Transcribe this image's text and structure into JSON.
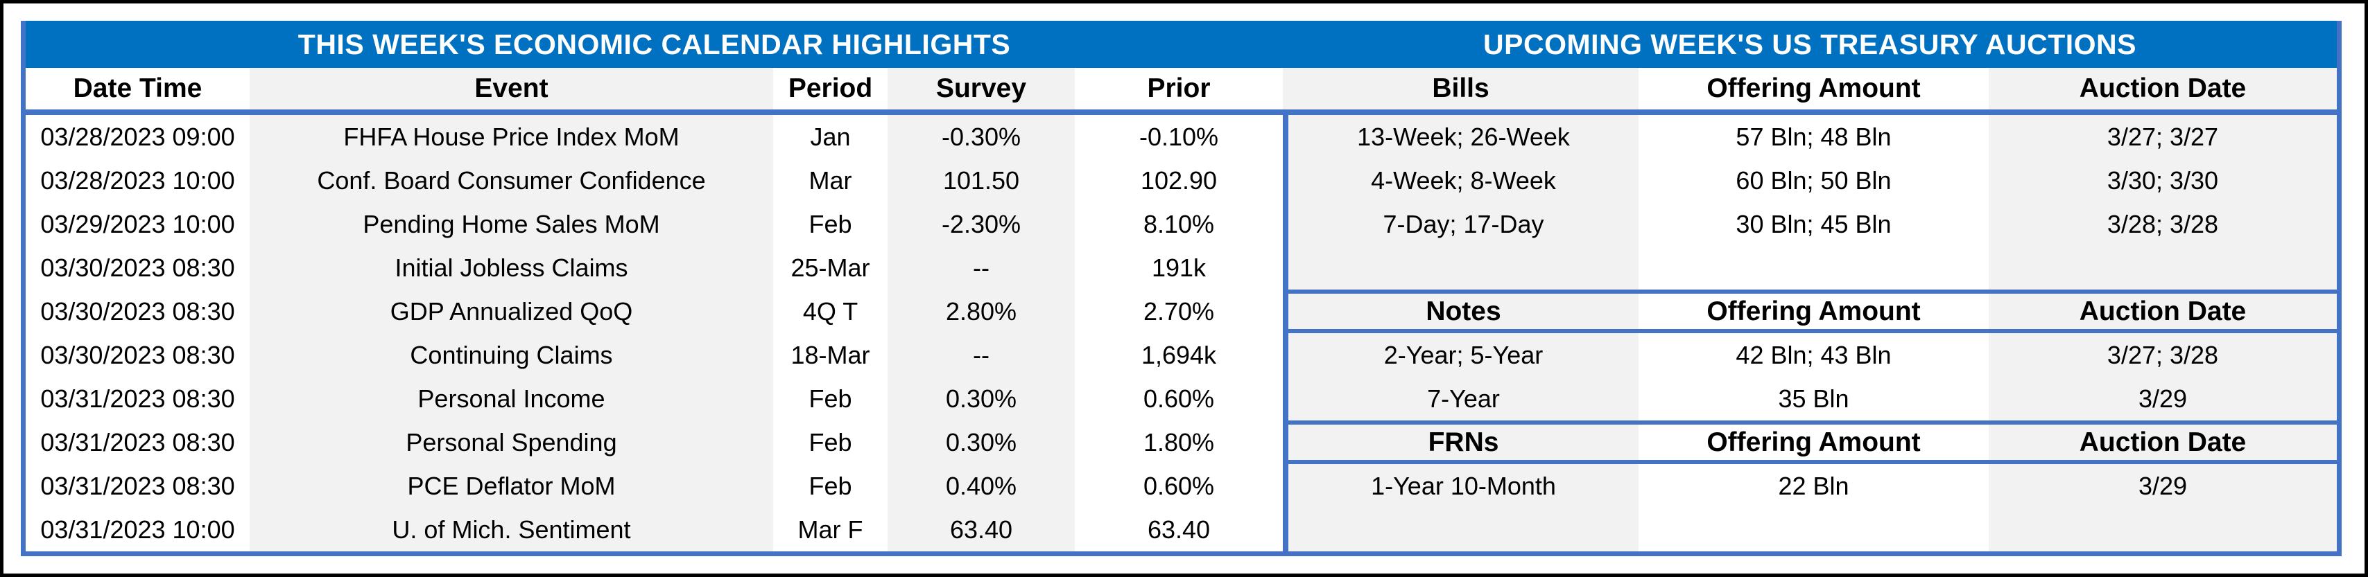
{
  "left_table": {
    "title": "THIS WEEK'S ECONOMIC CALENDAR HIGHLIGHTS",
    "columns": [
      "Date Time",
      "Event",
      "Period",
      "Survey",
      "Prior"
    ],
    "rows": [
      [
        "03/28/2023 09:00",
        "FHFA House Price Index MoM",
        "Jan",
        "-0.30%",
        "-0.10%"
      ],
      [
        "03/28/2023 10:00",
        "Conf. Board Consumer Confidence",
        "Mar",
        "101.50",
        "102.90"
      ],
      [
        "03/29/2023 10:00",
        "Pending Home Sales MoM",
        "Feb",
        "-2.30%",
        "8.10%"
      ],
      [
        "03/30/2023 08:30",
        "Initial Jobless Claims",
        "25-Mar",
        "--",
        "191k"
      ],
      [
        "03/30/2023 08:30",
        "GDP Annualized QoQ",
        "4Q T",
        "2.80%",
        "2.70%"
      ],
      [
        "03/30/2023 08:30",
        "Continuing Claims",
        "18-Mar",
        "--",
        "1,694k"
      ],
      [
        "03/31/2023 08:30",
        "Personal Income",
        "Feb",
        "0.30%",
        "0.60%"
      ],
      [
        "03/31/2023 08:30",
        "Personal Spending",
        "Feb",
        "0.30%",
        "1.80%"
      ],
      [
        "03/31/2023 08:30",
        "PCE Deflator MoM",
        "Feb",
        "0.40%",
        "0.60%"
      ],
      [
        "03/31/2023 10:00",
        "U. of Mich. Sentiment",
        "Mar F",
        "63.40",
        "63.40"
      ]
    ]
  },
  "right_table": {
    "title": "UPCOMING WEEK'S US TREASURY AUCTIONS",
    "sections": [
      {
        "key": "bills",
        "header": [
          "Bills",
          "Offering Amount",
          "Auction Date"
        ],
        "rows": [
          [
            "13-Week; 26-Week",
            "57 Bln; 48 Bln",
            "3/27; 3/27"
          ],
          [
            "4-Week; 8-Week",
            "60 Bln; 50 Bln",
            "3/30; 3/30"
          ],
          [
            "7-Day; 17-Day",
            "30 Bln; 45 Bln",
            "3/28; 3/28"
          ],
          [
            "",
            "",
            ""
          ]
        ]
      },
      {
        "key": "notes",
        "header": [
          "Notes",
          "Offering Amount",
          "Auction Date"
        ],
        "rows": [
          [
            "2-Year; 5-Year",
            "42 Bln; 43 Bln",
            "3/27; 3/28"
          ],
          [
            "7-Year",
            "35 Bln",
            "3/29"
          ]
        ]
      },
      {
        "key": "frns",
        "header": [
          "FRNs",
          "Offering Amount",
          "Auction Date"
        ],
        "rows": [
          [
            "1-Year 10-Month",
            "22 Bln",
            "3/29"
          ],
          [
            "",
            "",
            ""
          ]
        ]
      }
    ]
  },
  "colors": {
    "band_blue": "#0070C0",
    "border_blue": "#4472C4",
    "shade_gray": "#F2F2F2",
    "frame_black": "#000000",
    "text": "#000000"
  }
}
